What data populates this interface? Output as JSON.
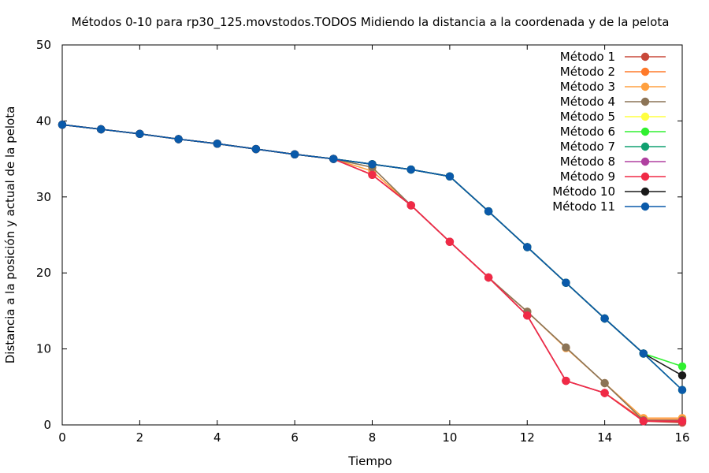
{
  "chart_data": {
    "type": "line",
    "title": "Métodos 0-10 para rp30_125.movstodos.TODOS Midiendo la distancia a la coordenada y de la pelota",
    "xlabel": "Tiempo",
    "ylabel": "Distancia a la posición y actual de la pelota",
    "xlim": [
      0,
      16
    ],
    "ylim": [
      0,
      50
    ],
    "xticks": [
      0,
      2,
      4,
      6,
      8,
      10,
      12,
      14,
      16
    ],
    "yticks": [
      0,
      10,
      20,
      30,
      40,
      50
    ],
    "grid": false,
    "legend_position": "top-right",
    "x": [
      0,
      1,
      2,
      3,
      4,
      5,
      6,
      7,
      8,
      9,
      10,
      11,
      12,
      13,
      14,
      15,
      16
    ],
    "series": [
      {
        "name": "Método 1",
        "color": "#c8483a",
        "values": [
          39.5,
          38.9,
          38.3,
          37.6,
          37.0,
          36.3,
          35.6,
          35.0,
          32.9,
          28.9,
          24.1,
          19.4,
          14.4,
          5.8,
          4.2,
          0.5,
          0.3
        ]
      },
      {
        "name": "Método 2",
        "color": "#ff7a2a",
        "values": [
          39.5,
          38.9,
          38.3,
          37.6,
          37.0,
          36.3,
          35.6,
          35.0,
          32.9,
          28.9,
          24.1,
          19.4,
          14.4,
          5.8,
          4.2,
          0.7,
          0.7
        ]
      },
      {
        "name": "Método 3",
        "color": "#ffa040",
        "values": [
          39.5,
          38.9,
          38.3,
          37.6,
          37.0,
          36.3,
          35.6,
          35.0,
          33.4,
          28.9,
          24.1,
          19.4,
          14.9,
          10.1,
          5.5,
          0.9,
          0.9
        ]
      },
      {
        "name": "Método 4",
        "color": "#8c7456",
        "values": [
          39.5,
          38.9,
          38.3,
          37.6,
          37.0,
          36.3,
          35.6,
          35.0,
          33.9,
          28.9,
          24.1,
          19.4,
          14.9,
          10.2,
          5.5,
          0.6,
          0.6
        ]
      },
      {
        "name": "Método 5",
        "color": "#ffff40",
        "values": [
          39.5,
          38.9,
          38.3,
          37.6,
          37.0,
          36.3,
          35.6,
          35.0,
          34.3,
          33.6,
          32.7,
          28.1,
          23.4,
          18.7,
          14.0,
          9.4,
          4.6
        ]
      },
      {
        "name": "Método 6",
        "color": "#30f030",
        "values": [
          39.5,
          38.9,
          38.3,
          37.6,
          37.0,
          36.3,
          35.6,
          35.0,
          34.3,
          33.6,
          32.7,
          28.1,
          23.4,
          18.7,
          14.0,
          9.4,
          7.7
        ]
      },
      {
        "name": "Método 7",
        "color": "#10a070",
        "values": [
          39.5,
          38.9,
          38.3,
          37.6,
          37.0,
          36.3,
          35.6,
          35.0,
          34.3,
          33.6,
          32.7,
          28.1,
          23.4,
          18.7,
          14.0,
          9.4,
          4.6
        ]
      },
      {
        "name": "Método 8",
        "color": "#b040a0",
        "values": [
          39.5,
          38.9,
          38.3,
          37.6,
          37.0,
          36.3,
          35.6,
          35.0,
          32.9,
          28.9,
          24.1,
          19.4,
          14.4,
          5.8,
          4.2,
          0.5,
          0.5
        ]
      },
      {
        "name": "Método 9",
        "color": "#f02a46",
        "values": [
          39.5,
          38.9,
          38.3,
          37.6,
          37.0,
          36.3,
          35.6,
          35.0,
          32.9,
          28.9,
          24.1,
          19.4,
          14.4,
          5.8,
          4.2,
          0.5,
          0.5
        ]
      },
      {
        "name": "Método 10",
        "color": "#1a1a1a",
        "values": [
          39.5,
          38.9,
          38.3,
          37.6,
          37.0,
          36.3,
          35.6,
          35.0,
          34.3,
          33.6,
          32.7,
          28.1,
          23.4,
          18.7,
          14.0,
          9.4,
          6.5
        ]
      },
      {
        "name": "Método 11",
        "color": "#0a5aaa",
        "values": [
          39.5,
          38.9,
          38.3,
          37.6,
          37.0,
          36.3,
          35.6,
          35.0,
          34.3,
          33.6,
          32.7,
          28.1,
          23.4,
          18.7,
          14.0,
          9.4,
          4.6
        ]
      }
    ]
  }
}
